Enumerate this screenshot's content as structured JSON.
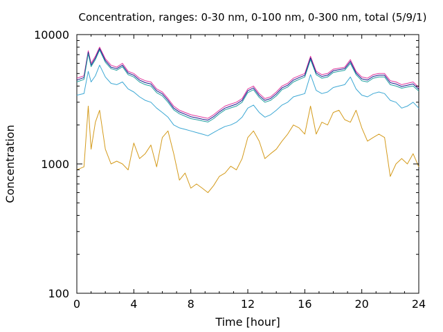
{
  "chart_data": {
    "type": "line",
    "title": "Concentration, ranges: 0-30 nm, 0-100 nm, 0-300 nm, total (5/9/1)",
    "xlabel": "Time [hour]",
    "ylabel": "Concentration",
    "xlim": [
      0,
      24
    ],
    "ylim": [
      100,
      10000
    ],
    "yscale": "log",
    "grid": false,
    "legend": "none",
    "x_ticks": [
      "0",
      "4",
      "8",
      "12",
      "16",
      "20",
      "24"
    ],
    "x_tick_values": [
      0,
      4,
      8,
      12,
      16,
      20,
      24
    ],
    "y_ticks": [
      "100",
      "1000",
      "10000"
    ],
    "y_tick_values": [
      100,
      1000,
      10000
    ],
    "x": [
      0.0,
      0.5,
      0.8,
      1.0,
      1.3,
      1.6,
      2.0,
      2.4,
      2.8,
      3.2,
      3.6,
      4.0,
      4.4,
      4.8,
      5.2,
      5.6,
      6.0,
      6.4,
      6.8,
      7.2,
      7.6,
      8.0,
      8.4,
      8.8,
      9.2,
      9.6,
      10.0,
      10.4,
      10.8,
      11.2,
      11.6,
      12.0,
      12.4,
      12.8,
      13.2,
      13.6,
      14.0,
      14.4,
      14.8,
      15.2,
      15.6,
      16.0,
      16.4,
      16.8,
      17.2,
      17.6,
      18.0,
      18.4,
      18.8,
      19.2,
      19.6,
      20.0,
      20.4,
      20.8,
      21.2,
      21.6,
      22.0,
      22.4,
      22.8,
      23.2,
      23.6,
      24.0
    ],
    "series": [
      {
        "color": "#e0389e",
        "values": [
          4600,
          4800,
          7500,
          6000,
          6800,
          8000,
          6500,
          5800,
          5600,
          6000,
          5200,
          5000,
          4600,
          4400,
          4300,
          3800,
          3600,
          3200,
          2800,
          2600,
          2500,
          2400,
          2350,
          2300,
          2250,
          2400,
          2600,
          2800,
          2900,
          3000,
          3200,
          3800,
          4000,
          3500,
          3200,
          3300,
          3600,
          4000,
          4200,
          4600,
          4800,
          5000,
          6800,
          5200,
          4900,
          5000,
          5400,
          5500,
          5600,
          6400,
          5200,
          4700,
          4600,
          4900,
          5000,
          5000,
          4400,
          4300,
          4100,
          4200,
          4300,
          3900
        ]
      },
      {
        "color": "#1a1a8c",
        "values": [
          4450,
          4650,
          7300,
          5800,
          6600,
          7800,
          6300,
          5600,
          5450,
          5800,
          5050,
          4850,
          4450,
          4250,
          4150,
          3680,
          3480,
          3100,
          2700,
          2520,
          2420,
          2320,
          2270,
          2220,
          2180,
          2320,
          2520,
          2700,
          2800,
          2900,
          3100,
          3680,
          3870,
          3380,
          3100,
          3200,
          3480,
          3870,
          4060,
          4450,
          4650,
          4850,
          6600,
          5050,
          4750,
          4850,
          5250,
          5350,
          5450,
          6200,
          5050,
          4550,
          4450,
          4750,
          4850,
          4850,
          4250,
          4150,
          3970,
          4060,
          4150,
          3780
        ]
      },
      {
        "color": "#22a0a0",
        "values": [
          4300,
          4500,
          7100,
          5650,
          6400,
          7600,
          6100,
          5450,
          5300,
          5650,
          4900,
          4700,
          4300,
          4100,
          4000,
          3560,
          3360,
          3000,
          2620,
          2440,
          2340,
          2240,
          2200,
          2150,
          2110,
          2240,
          2440,
          2620,
          2710,
          2800,
          3000,
          3560,
          3750,
          3270,
          3000,
          3100,
          3360,
          3750,
          3930,
          4300,
          4500,
          4700,
          6400,
          4900,
          4600,
          4700,
          5100,
          5200,
          5300,
          6000,
          4900,
          4400,
          4300,
          4600,
          4700,
          4700,
          4100,
          4000,
          3850,
          3930,
          4000,
          3660
        ]
      },
      {
        "color": "#3ba7d4",
        "values": [
          3400,
          3500,
          5200,
          4300,
          4800,
          5800,
          4700,
          4200,
          4100,
          4300,
          3800,
          3600,
          3300,
          3100,
          3000,
          2700,
          2500,
          2300,
          2000,
          1900,
          1850,
          1800,
          1750,
          1700,
          1650,
          1750,
          1850,
          1950,
          2000,
          2100,
          2300,
          2700,
          2850,
          2500,
          2300,
          2400,
          2600,
          2850,
          3000,
          3300,
          3400,
          3500,
          4900,
          3700,
          3500,
          3600,
          3900,
          4000,
          4100,
          4700,
          3800,
          3400,
          3300,
          3500,
          3600,
          3500,
          3100,
          3000,
          2700,
          2800,
          3000,
          2700
        ]
      },
      {
        "color": "#d49a1a",
        "values": [
          900,
          950,
          2800,
          1300,
          2100,
          2600,
          1300,
          1000,
          1050,
          1000,
          900,
          1450,
          1100,
          1200,
          1400,
          950,
          1600,
          1800,
          1200,
          750,
          850,
          650,
          700,
          650,
          600,
          680,
          800,
          850,
          960,
          900,
          1100,
          1600,
          1800,
          1500,
          1100,
          1200,
          1300,
          1500,
          1700,
          2000,
          1900,
          1700,
          2800,
          1700,
          2100,
          2000,
          2500,
          2600,
          2200,
          2100,
          2600,
          1900,
          1500,
          1600,
          1700,
          1600,
          800,
          1000,
          1100,
          1000,
          1200,
          950
        ]
      }
    ]
  }
}
